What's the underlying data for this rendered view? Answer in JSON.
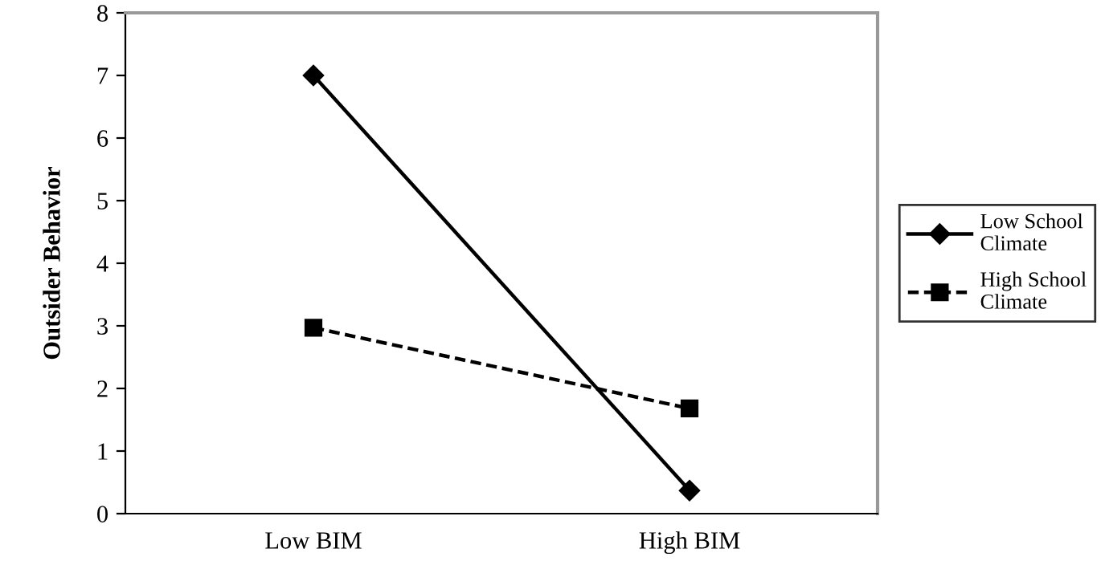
{
  "chart_data": {
    "type": "line",
    "ylabel": "Outsider Behavior",
    "categories": [
      "Low BIM",
      "High BIM"
    ],
    "series": [
      {
        "name": "Low School Climate",
        "color": "#000000",
        "values": [
          7.0,
          0.37
        ],
        "marker": "diamond",
        "line_style": "solid"
      },
      {
        "name": "High School Climate",
        "color": "#000000",
        "values": [
          2.97,
          1.68
        ],
        "marker": "square",
        "line_style": "dashed"
      }
    ],
    "ylim": [
      0,
      8
    ],
    "yticks": [
      0,
      1,
      2,
      3,
      4,
      5,
      6,
      7,
      8
    ],
    "grid": false,
    "legend": "right"
  }
}
